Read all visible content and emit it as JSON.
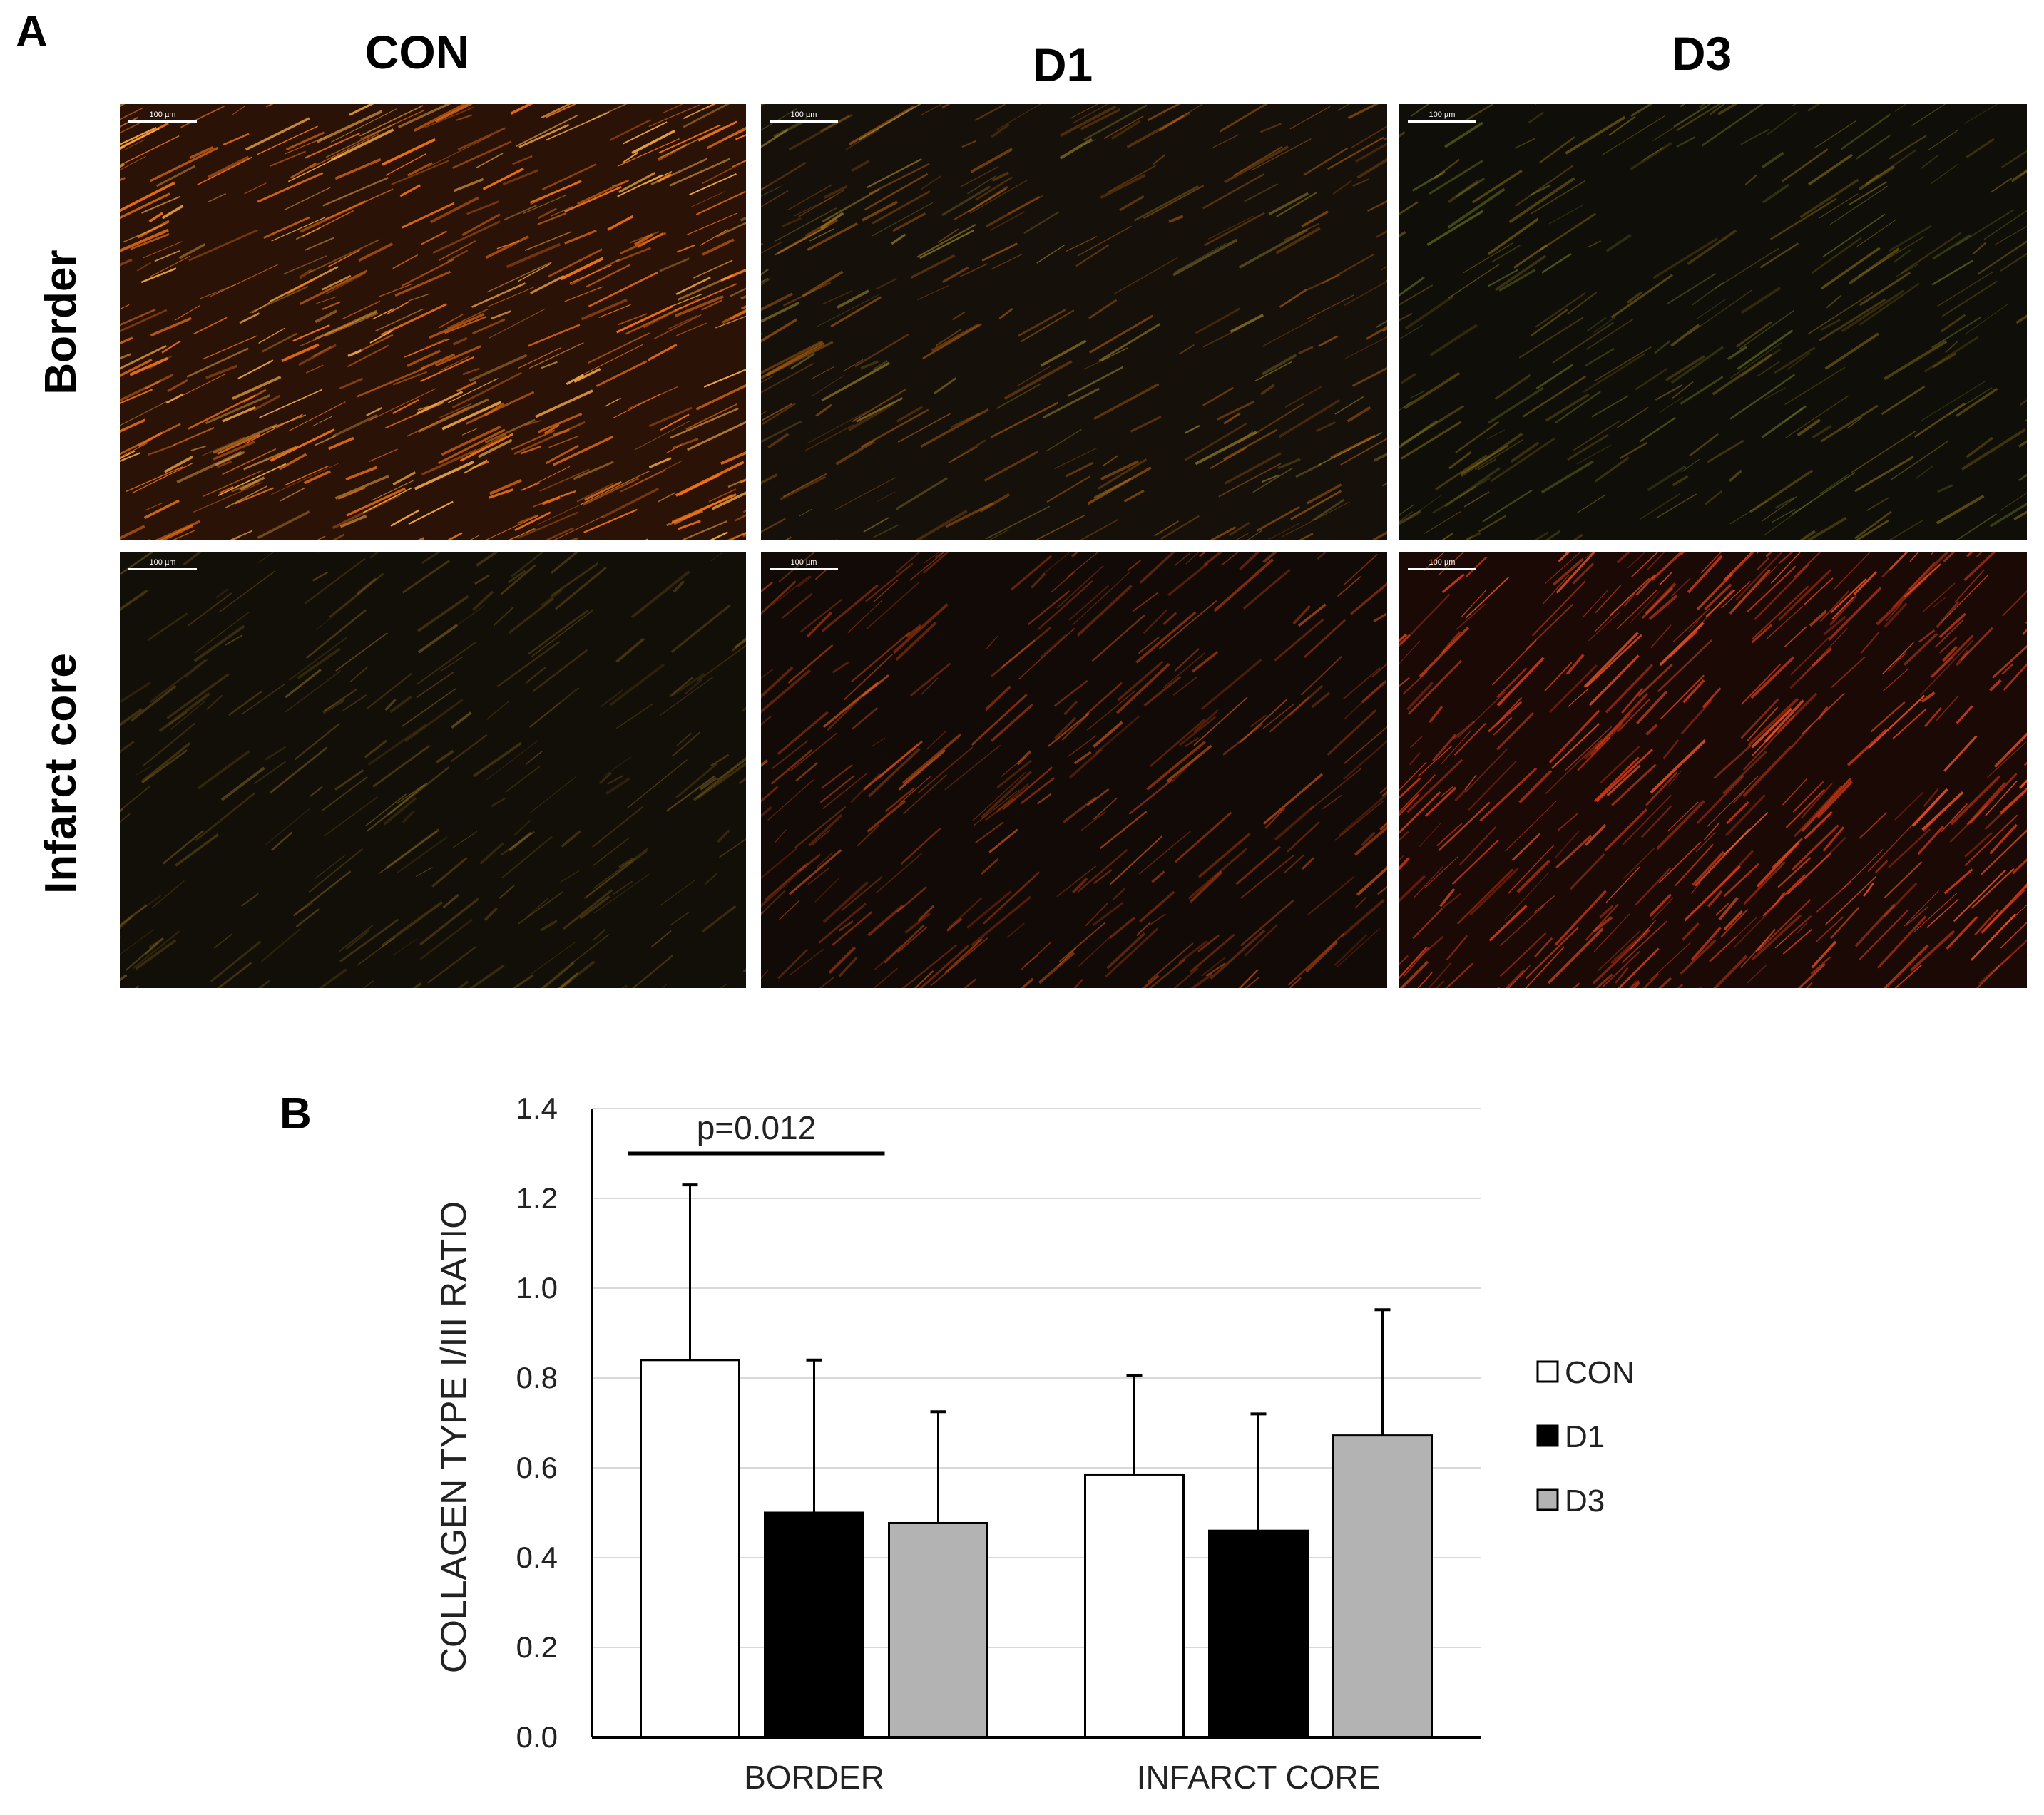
{
  "panel_a": {
    "letter": "A",
    "columns": [
      "CON",
      "D1",
      "D3"
    ],
    "rows": [
      "Border",
      "Infarct core"
    ],
    "scale_bar_label": "100 µm",
    "images": [
      {
        "row": "Border",
        "column": "CON",
        "base_color": "#2a1206",
        "fiber_color": "#ff7a18",
        "highlight_color": "#ffb347",
        "density": 0.95
      },
      {
        "row": "Border",
        "column": "D1",
        "base_color": "#15100a",
        "fiber_color": "#c56a10",
        "highlight_color": "#b8a030",
        "density": 0.55
      },
      {
        "row": "Border",
        "column": "D3",
        "base_color": "#0f0e08",
        "fiber_color": "#a88a18",
        "highlight_color": "#8a9a28",
        "density": 0.45
      },
      {
        "row": "Infarct core",
        "column": "CON",
        "base_color": "#120e08",
        "fiber_color": "#8a6a18",
        "highlight_color": "#b08a28",
        "density": 0.4
      },
      {
        "row": "Infarct core",
        "column": "D1",
        "base_color": "#120a06",
        "fiber_color": "#d84a10",
        "highlight_color": "#ff6a20",
        "density": 0.55
      },
      {
        "row": "Infarct core",
        "column": "D3",
        "base_color": "#1a0905",
        "fiber_color": "#e8401a",
        "highlight_color": "#ff5a28",
        "density": 0.85
      }
    ]
  },
  "panel_b": {
    "letter": "B"
  },
  "chart_data": {
    "type": "bar",
    "title": "",
    "xlabel": "",
    "ylabel": "COLLAGEN TYPE I/III RATIO",
    "ylim": [
      0,
      1.4
    ],
    "yticks": [
      "0.0",
      "0.2",
      "0.4",
      "0.6",
      "0.8",
      "1.0",
      "1.2",
      "1.4"
    ],
    "ytick_values": [
      0,
      0.2,
      0.4,
      0.6,
      0.8,
      1.0,
      1.2,
      1.4
    ],
    "categories": [
      "BORDER",
      "INFARCT CORE"
    ],
    "grid": true,
    "legend_position": "right",
    "series": [
      {
        "name": "CON",
        "color": "#ffffff",
        "values": [
          0.84,
          0.585
        ],
        "errors": [
          0.39,
          0.22
        ]
      },
      {
        "name": "D1",
        "color": "#000000",
        "values": [
          0.5,
          0.46
        ],
        "errors": [
          0.34,
          0.26
        ]
      },
      {
        "name": "D3",
        "color": "#b3b3b3",
        "values": [
          0.477,
          0.672
        ],
        "errors": [
          0.248,
          0.28
        ]
      }
    ],
    "annotations": [
      {
        "text": "p=0.012",
        "category": "BORDER",
        "from_series": "CON",
        "to_series": "D1",
        "y": 1.3
      }
    ]
  }
}
